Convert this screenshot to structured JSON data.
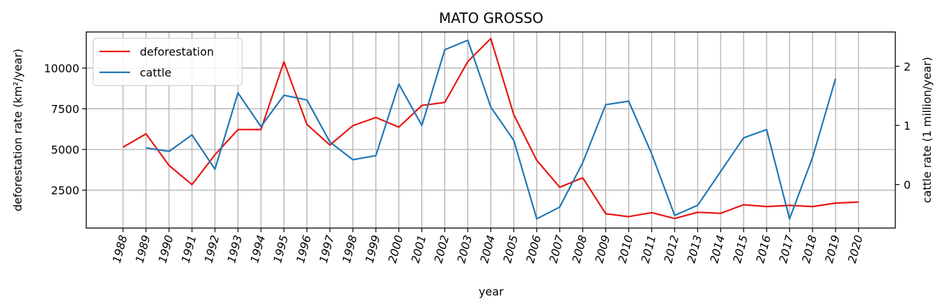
{
  "chart_data": {
    "type": "line",
    "title": "MATO GROSSO",
    "xlabel": "year",
    "ylabel": "deforestation rate (km²/year)",
    "y2label": "cattle rate (1 million/year)",
    "x": [
      1988,
      1989,
      1990,
      1991,
      1992,
      1993,
      1994,
      1995,
      1996,
      1997,
      1998,
      1999,
      2000,
      2001,
      2002,
      2003,
      2004,
      2005,
      2006,
      2007,
      2008,
      2009,
      2010,
      2011,
      2012,
      2013,
      2014,
      2015,
      2016,
      2017,
      2018,
      2019,
      2020
    ],
    "xlim": [
      1987.4,
      1990.0
    ],
    "ylim": [
      170,
      12220
    ],
    "y2lim": [
      -0.735,
      2.58
    ],
    "yticks": [
      2500,
      5000,
      7500,
      10000
    ],
    "y2ticks": [
      0,
      1,
      2
    ],
    "grid": true,
    "legend_position": "upper left",
    "series": [
      {
        "name": "deforestation",
        "axis": "left",
        "color": "#e8150f",
        "x": [
          1988,
          1989,
          1990,
          1991,
          1992,
          1993,
          1994,
          1995,
          1996,
          1997,
          1998,
          1999,
          2000,
          2001,
          2002,
          2003,
          2004,
          2005,
          2006,
          2007,
          2008,
          2009,
          2010,
          2011,
          2012,
          2013,
          2014,
          2015,
          2016,
          2017,
          2018,
          2019,
          2020
        ],
        "values": [
          5140,
          5960,
          4020,
          2840,
          4674,
          6220,
          6220,
          10391,
          6543,
          5271,
          6466,
          6963,
          6369,
          7703,
          7892,
          10405,
          11814,
          7145,
          4333,
          2678,
          3258,
          1049,
          871,
          1120,
          757,
          1139,
          1075,
          1601,
          1489,
          1561,
          1490,
          1702,
          1767
        ]
      },
      {
        "name": "cattle",
        "axis": "right",
        "color": "#1f77b4",
        "x": [
          1989,
          1990,
          1991,
          1992,
          1993,
          1994,
          1995,
          1996,
          1997,
          1998,
          1999,
          2000,
          2001,
          2002,
          2003,
          2004,
          2005,
          2006,
          2007,
          2008,
          2009,
          2010,
          2011,
          2012,
          2013,
          2014,
          2015,
          2016,
          2017,
          2018,
          2019
        ],
        "values": [
          0.62,
          0.56,
          0.84,
          0.26,
          1.55,
          0.98,
          1.51,
          1.43,
          0.72,
          0.42,
          0.49,
          1.7,
          1.0,
          2.28,
          2.44,
          1.31,
          0.75,
          -0.58,
          -0.38,
          0.37,
          1.35,
          1.41,
          0.52,
          -0.52,
          -0.35,
          0.22,
          0.79,
          0.93,
          -0.58,
          0.46,
          1.79
        ]
      }
    ]
  }
}
